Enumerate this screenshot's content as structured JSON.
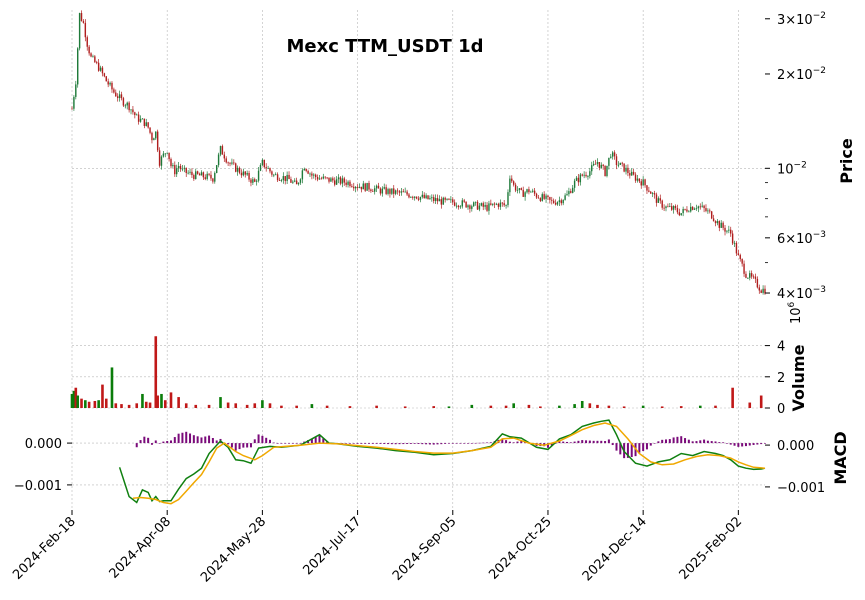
{
  "chart_data": {
    "type": "candlestick",
    "title": "Mexc TTM_USDT 1d",
    "colors": {
      "up": "#1f7a3a",
      "down": "#b01e1e",
      "volume_up": "#0a7d0a",
      "volume_down": "#c01818",
      "macd_line": "#108010",
      "signal_line": "#f0a800",
      "histogram": "#7a0a7a",
      "grid": "#b8b8b8"
    },
    "x_axis": {
      "tick_labels": [
        "2024-Feb-18",
        "2024-Apr-08",
        "2024-May-28",
        "2024-Jul-17",
        "2024-Sep-05",
        "2024-Oct-25",
        "2024-Dec-14",
        "2025-Feb-02"
      ],
      "tick_days": [
        0,
        50,
        100,
        150,
        200,
        250,
        300,
        350
      ],
      "start_date": "2024-02-18",
      "end_day": 364
    },
    "price_panel": {
      "ylabel": "Price",
      "scale": "log",
      "ylim": [
        0.0038,
        0.032
      ],
      "tick_values": [
        0.03,
        0.02,
        0.01,
        0.006,
        0.004
      ],
      "tick_mantissa": [
        "3",
        "2",
        "",
        "6",
        "4"
      ],
      "tick_exponent": [
        "−2",
        "−2",
        "−2",
        "−3",
        "−3"
      ],
      "tick_base": [
        "10",
        "10",
        "10",
        "10",
        "10"
      ],
      "minor_tick_values": [
        0.009,
        0.008,
        0.007,
        0.005
      ],
      "close_series_days": [
        0,
        2,
        4,
        6,
        8,
        10,
        14,
        18,
        22,
        26,
        30,
        34,
        38,
        40,
        42,
        44,
        46,
        48,
        50,
        52,
        54,
        56,
        58,
        60,
        62,
        64,
        66,
        70,
        74,
        78,
        80,
        82,
        84,
        88,
        92,
        96,
        100,
        104,
        106,
        110,
        114,
        118,
        122,
        126,
        130,
        134,
        140,
        146,
        150,
        156,
        162,
        168,
        174,
        180,
        186,
        192,
        196,
        200,
        206,
        212,
        218,
        224,
        228,
        230,
        232,
        236,
        240,
        244,
        248,
        252,
        256,
        260,
        264,
        268,
        272,
        276,
        280,
        283,
        286,
        290,
        294,
        300,
        304,
        308,
        312,
        316,
        320,
        324,
        328,
        332,
        336,
        340,
        343,
        346,
        350,
        354,
        358,
        362,
        364
      ],
      "close_series_values": [
        0.0155,
        0.019,
        0.031,
        0.029,
        0.025,
        0.0225,
        0.021,
        0.019,
        0.0175,
        0.0165,
        0.0158,
        0.0145,
        0.014,
        0.0135,
        0.0125,
        0.013,
        0.0105,
        0.011,
        0.0115,
        0.0102,
        0.0098,
        0.0102,
        0.0098,
        0.0097,
        0.0096,
        0.0095,
        0.0095,
        0.0094,
        0.0093,
        0.0115,
        0.011,
        0.0105,
        0.0102,
        0.0098,
        0.0094,
        0.009,
        0.0104,
        0.0098,
        0.0095,
        0.0094,
        0.0092,
        0.0088,
        0.0102,
        0.0095,
        0.0093,
        0.0092,
        0.0091,
        0.009,
        0.0088,
        0.0087,
        0.0085,
        0.0084,
        0.0083,
        0.0082,
        0.008,
        0.0079,
        0.0078,
        0.0078,
        0.0077,
        0.0076,
        0.0075,
        0.0077,
        0.0076,
        0.0095,
        0.0088,
        0.0083,
        0.0085,
        0.0082,
        0.008,
        0.0078,
        0.0079,
        0.0082,
        0.009,
        0.0095,
        0.0098,
        0.0105,
        0.0097,
        0.0112,
        0.0104,
        0.01,
        0.0095,
        0.009,
        0.0084,
        0.0078,
        0.0075,
        0.0074,
        0.0072,
        0.0075,
        0.0076,
        0.0074,
        0.0071,
        0.0066,
        0.0064,
        0.0062,
        0.0052,
        0.0046,
        0.0044,
        0.0041,
        0.0041
      ]
    },
    "volume_panel": {
      "ylabel": "Volume",
      "exponent_label": "10",
      "exponent_power": "6",
      "ylim": [
        0,
        5
      ],
      "tick_values": [
        0,
        2,
        4
      ],
      "bars": [
        {
          "day": 0,
          "value": 0.9,
          "dir": "up"
        },
        {
          "day": 1,
          "value": 1.1,
          "dir": "up"
        },
        {
          "day": 2,
          "value": 1.3,
          "dir": "down"
        },
        {
          "day": 3,
          "value": 0.8,
          "dir": "up"
        },
        {
          "day": 5,
          "value": 0.6,
          "dir": "down"
        },
        {
          "day": 7,
          "value": 0.5,
          "dir": "up"
        },
        {
          "day": 9,
          "value": 0.4,
          "dir": "down"
        },
        {
          "day": 12,
          "value": 0.45,
          "dir": "down"
        },
        {
          "day": 14,
          "value": 0.5,
          "dir": "up"
        },
        {
          "day": 16,
          "value": 1.5,
          "dir": "down"
        },
        {
          "day": 18,
          "value": 0.6,
          "dir": "down"
        },
        {
          "day": 21,
          "value": 2.6,
          "dir": "up"
        },
        {
          "day": 23,
          "value": 0.3,
          "dir": "down"
        },
        {
          "day": 26,
          "value": 0.25,
          "dir": "down"
        },
        {
          "day": 30,
          "value": 0.2,
          "dir": "down"
        },
        {
          "day": 34,
          "value": 0.3,
          "dir": "down"
        },
        {
          "day": 37,
          "value": 0.9,
          "dir": "up"
        },
        {
          "day": 39,
          "value": 0.4,
          "dir": "down"
        },
        {
          "day": 41,
          "value": 0.35,
          "dir": "down"
        },
        {
          "day": 44,
          "value": 4.6,
          "dir": "down"
        },
        {
          "day": 45,
          "value": 0.8,
          "dir": "down"
        },
        {
          "day": 47,
          "value": 0.9,
          "dir": "up"
        },
        {
          "day": 49,
          "value": 0.5,
          "dir": "down"
        },
        {
          "day": 52,
          "value": 1.0,
          "dir": "down"
        },
        {
          "day": 56,
          "value": 0.7,
          "dir": "down"
        },
        {
          "day": 60,
          "value": 0.3,
          "dir": "down"
        },
        {
          "day": 65,
          "value": 0.2,
          "dir": "down"
        },
        {
          "day": 72,
          "value": 0.2,
          "dir": "down"
        },
        {
          "day": 78,
          "value": 0.7,
          "dir": "up"
        },
        {
          "day": 82,
          "value": 0.35,
          "dir": "down"
        },
        {
          "day": 86,
          "value": 0.3,
          "dir": "down"
        },
        {
          "day": 92,
          "value": 0.2,
          "dir": "down"
        },
        {
          "day": 96,
          "value": 0.3,
          "dir": "down"
        },
        {
          "day": 100,
          "value": 0.5,
          "dir": "up"
        },
        {
          "day": 104,
          "value": 0.3,
          "dir": "down"
        },
        {
          "day": 110,
          "value": 0.15,
          "dir": "down"
        },
        {
          "day": 118,
          "value": 0.15,
          "dir": "down"
        },
        {
          "day": 126,
          "value": 0.25,
          "dir": "up"
        },
        {
          "day": 134,
          "value": 0.15,
          "dir": "down"
        },
        {
          "day": 146,
          "value": 0.12,
          "dir": "down"
        },
        {
          "day": 160,
          "value": 0.15,
          "dir": "down"
        },
        {
          "day": 175,
          "value": 0.1,
          "dir": "down"
        },
        {
          "day": 190,
          "value": 0.12,
          "dir": "down"
        },
        {
          "day": 198,
          "value": 0.1,
          "dir": "up"
        },
        {
          "day": 210,
          "value": 0.2,
          "dir": "up"
        },
        {
          "day": 220,
          "value": 0.15,
          "dir": "down"
        },
        {
          "day": 228,
          "value": 0.15,
          "dir": "down"
        },
        {
          "day": 232,
          "value": 0.3,
          "dir": "up"
        },
        {
          "day": 240,
          "value": 0.2,
          "dir": "down"
        },
        {
          "day": 246,
          "value": 0.1,
          "dir": "down"
        },
        {
          "day": 256,
          "value": 0.15,
          "dir": "up"
        },
        {
          "day": 264,
          "value": 0.25,
          "dir": "up"
        },
        {
          "day": 268,
          "value": 0.45,
          "dir": "up"
        },
        {
          "day": 272,
          "value": 0.3,
          "dir": "down"
        },
        {
          "day": 276,
          "value": 0.2,
          "dir": "down"
        },
        {
          "day": 282,
          "value": 0.15,
          "dir": "down"
        },
        {
          "day": 290,
          "value": 0.1,
          "dir": "down"
        },
        {
          "day": 300,
          "value": 0.15,
          "dir": "up"
        },
        {
          "day": 310,
          "value": 0.1,
          "dir": "down"
        },
        {
          "day": 320,
          "value": 0.12,
          "dir": "down"
        },
        {
          "day": 330,
          "value": 0.15,
          "dir": "up"
        },
        {
          "day": 338,
          "value": 0.15,
          "dir": "down"
        },
        {
          "day": 347,
          "value": 1.3,
          "dir": "down"
        },
        {
          "day": 356,
          "value": 0.35,
          "dir": "down"
        },
        {
          "day": 362,
          "value": 0.8,
          "dir": "down"
        }
      ]
    },
    "macd_panel": {
      "ylabel": "MACD",
      "ylim": [
        -0.0016,
        0.0006
      ],
      "left_ticks": [
        0.0,
        -0.001
      ],
      "left_tick_labels": [
        "0.000",
        "−0.001"
      ],
      "right_tick_labels": [
        "0.000",
        "−0.001"
      ],
      "macd_days": [
        25,
        30,
        34,
        37,
        40,
        42,
        44,
        46,
        48,
        52,
        56,
        60,
        64,
        68,
        72,
        78,
        82,
        86,
        90,
        94,
        98,
        104,
        110,
        120,
        130,
        135,
        140,
        150,
        160,
        170,
        180,
        190,
        200,
        210,
        220,
        226,
        230,
        236,
        244,
        250,
        256,
        262,
        268,
        274,
        278,
        282,
        286,
        290,
        296,
        302,
        308,
        314,
        320,
        326,
        332,
        338,
        342,
        346,
        350,
        354,
        358,
        362,
        364
      ],
      "macd_values": [
        -0.00058,
        -0.00128,
        -0.00142,
        -0.00112,
        -0.00118,
        -0.00138,
        -0.00128,
        -0.0014,
        -0.00138,
        -0.00138,
        -0.0011,
        -0.00085,
        -0.00074,
        -0.0006,
        -0.00025,
        5e-05,
        -0.0001,
        -0.0004,
        -0.00042,
        -0.00048,
        -0.00012,
        -8e-05,
        -0.0001,
        -5e-05,
        0.0002,
        0.0,
        -2e-05,
        -8e-05,
        -0.00012,
        -0.00018,
        -0.00022,
        -0.00028,
        -0.00025,
        -0.00018,
        -8e-05,
        0.00022,
        0.00015,
        0.00012,
        -0.0001,
        -0.00015,
        0.0001,
        0.0002,
        0.0004,
        0.00048,
        0.00052,
        0.00055,
        0.0002,
        -0.0002,
        -0.00048,
        -0.00055,
        -0.00045,
        -0.0004,
        -0.00025,
        -0.0003,
        -0.0002,
        -0.00025,
        -0.0003,
        -0.0004,
        -0.00055,
        -0.0006,
        -0.00063,
        -0.00062,
        -0.0006
      ],
      "signal_days": [
        32,
        36,
        40,
        44,
        48,
        52,
        56,
        60,
        64,
        68,
        72,
        76,
        80,
        86,
        90,
        96,
        100,
        106,
        112,
        120,
        130,
        140,
        150,
        160,
        170,
        180,
        190,
        200,
        210,
        220,
        226,
        232,
        240,
        248,
        256,
        262,
        268,
        274,
        280,
        286,
        292,
        298,
        304,
        310,
        316,
        322,
        328,
        334,
        340,
        346,
        350,
        354,
        358,
        364
      ],
      "signal_values": [
        -0.00132,
        -0.0013,
        -0.00132,
        -0.00135,
        -0.00142,
        -0.00145,
        -0.00135,
        -0.00115,
        -0.00095,
        -0.00075,
        -0.00045,
        -0.00012,
        0.0,
        -0.0002,
        -0.0003,
        -0.0004,
        -0.0003,
        -0.0001,
        -8e-05,
        -5e-05,
        0.0,
        -2e-05,
        -6e-05,
        -0.0001,
        -0.00015,
        -0.0002,
        -0.00024,
        -0.00024,
        -0.00018,
        -0.0001,
        0.0001,
        0.00012,
        0.0,
        -5e-05,
        5e-05,
        0.00018,
        0.00032,
        0.00042,
        0.00048,
        0.0004,
        0.0001,
        -0.00025,
        -0.00045,
        -0.00052,
        -0.0005,
        -0.0004,
        -0.00032,
        -0.00028,
        -0.0003,
        -0.00036,
        -0.00045,
        -0.00052,
        -0.00058,
        -0.0006
      ]
    }
  }
}
